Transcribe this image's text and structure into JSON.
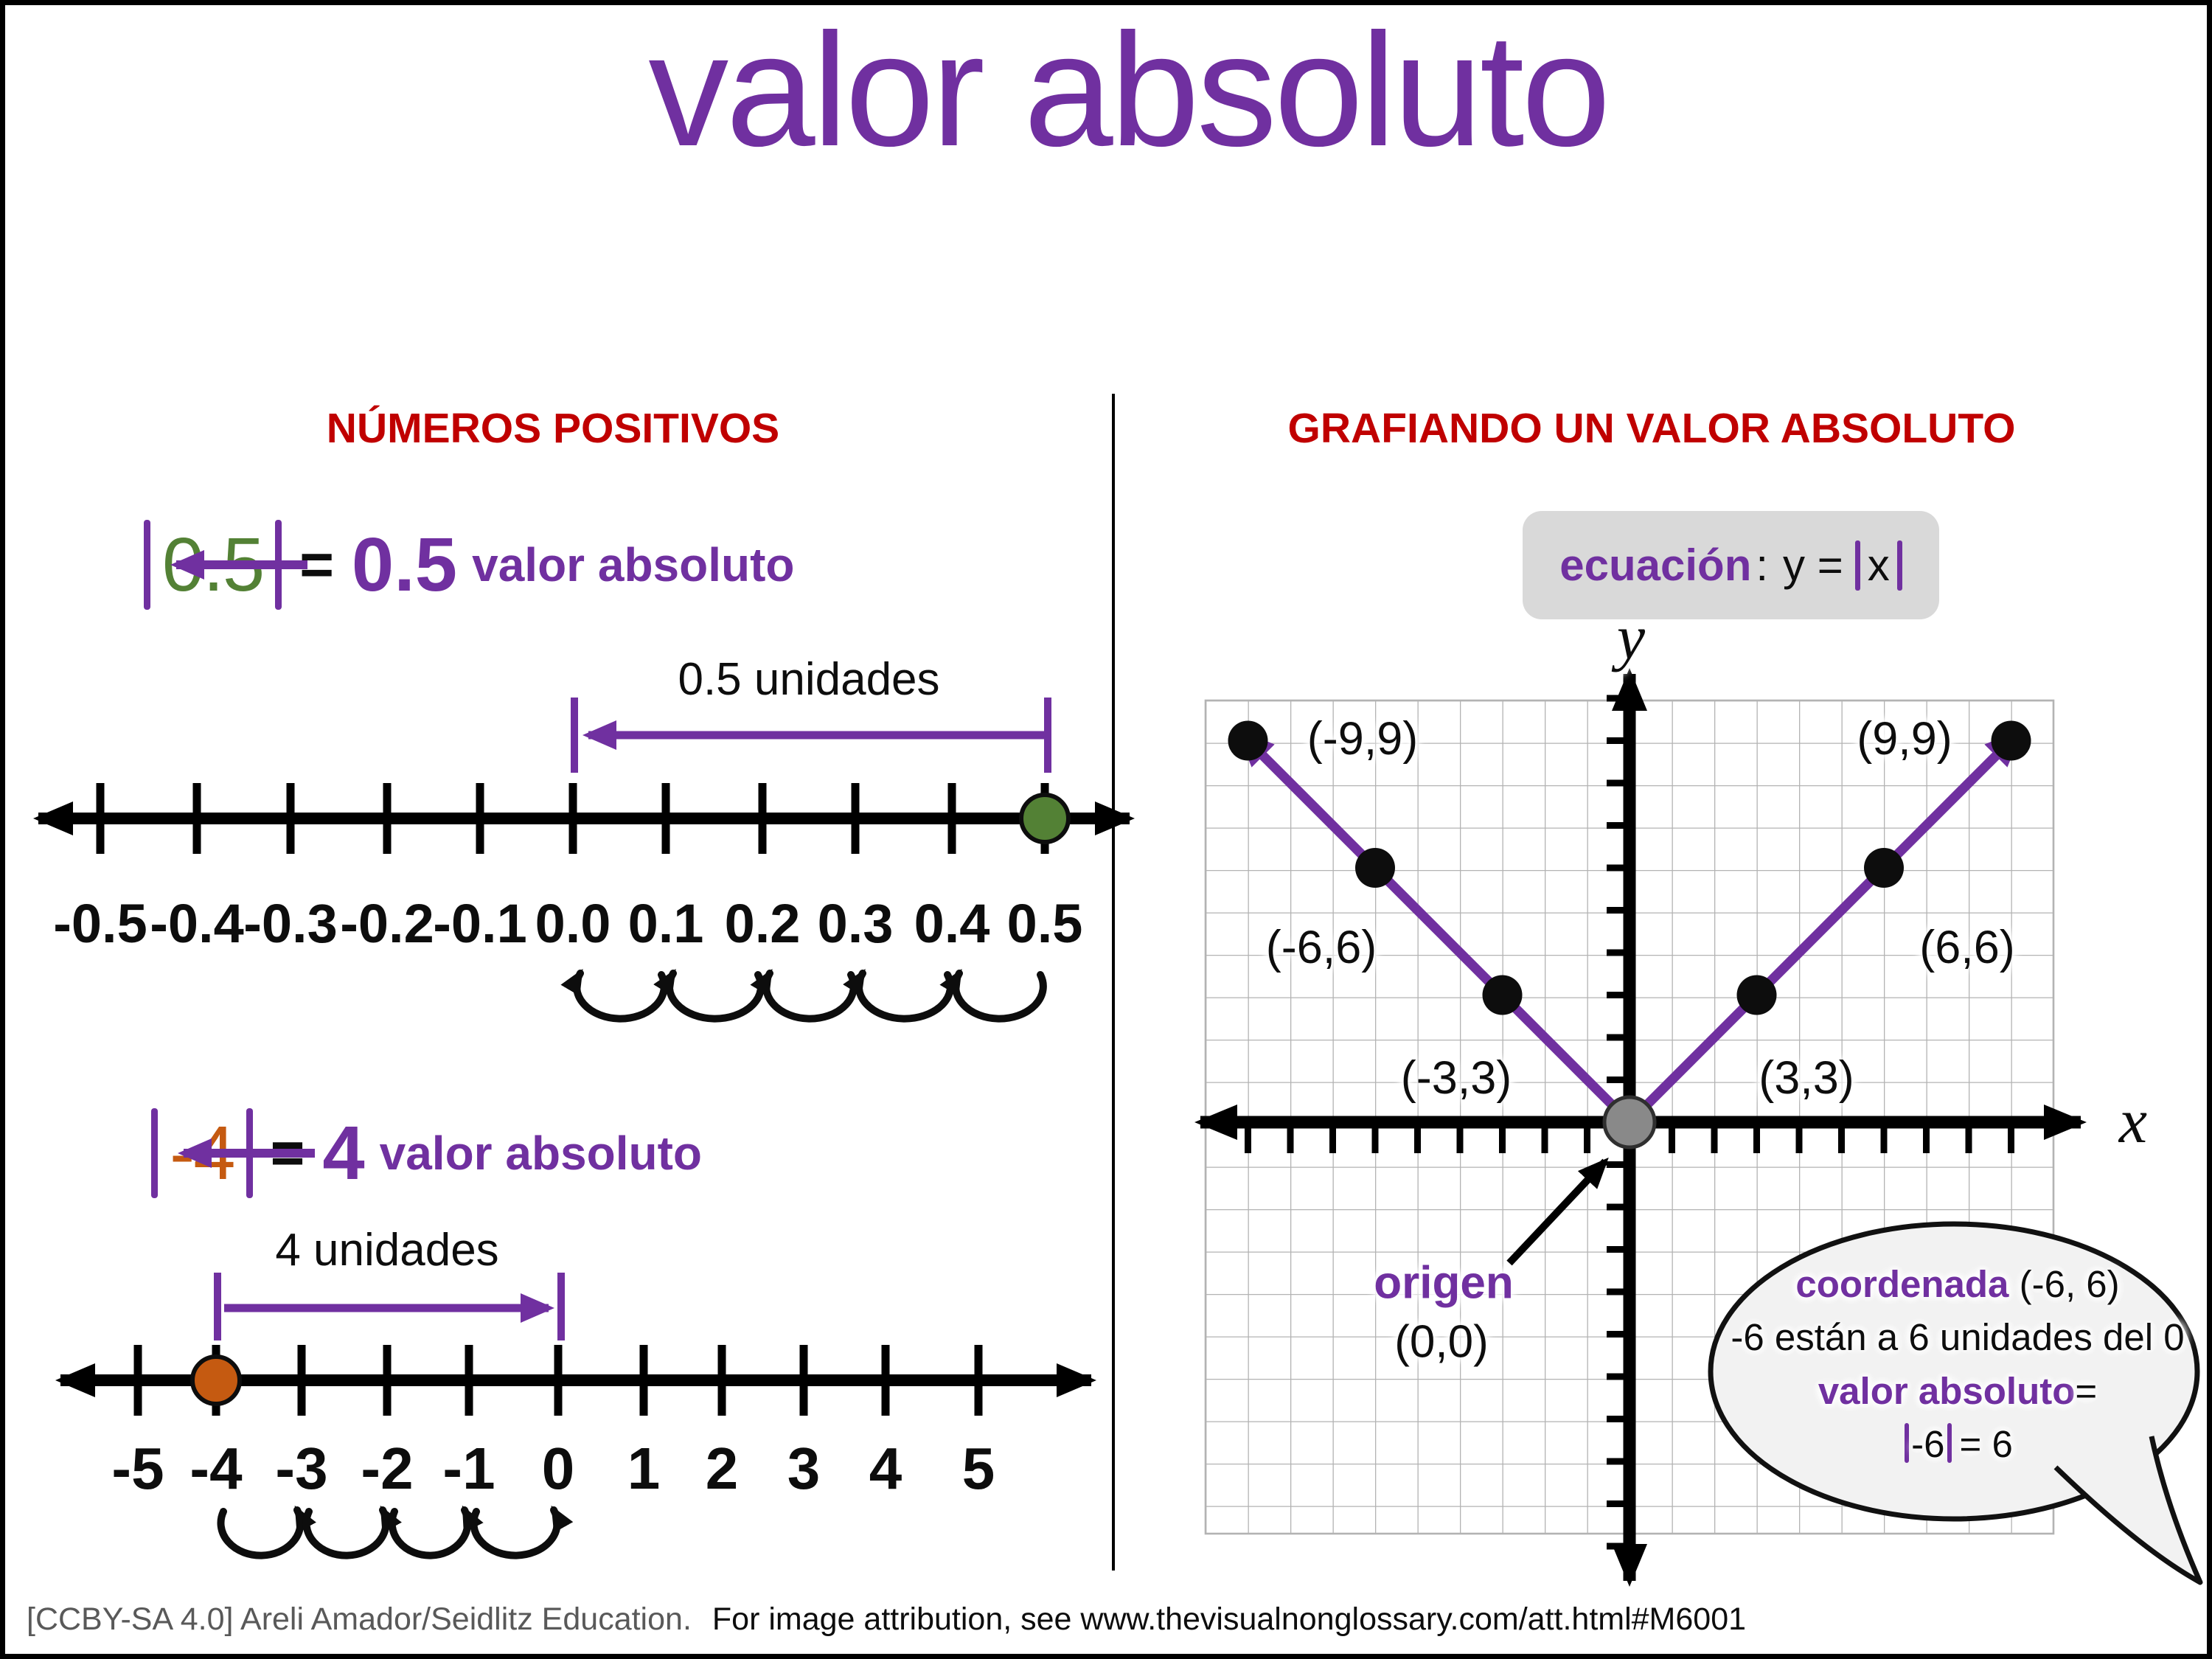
{
  "title": "valor absoluto",
  "palette": {
    "purple": "#7030A0",
    "red": "#C00000",
    "green": "#538135",
    "blue": "#2E75B6",
    "orange": "#C55A11",
    "gray_text": "#595959",
    "grid_line": "#b3b3b3",
    "bubble_fill": "#f2f2f2"
  },
  "left": {
    "heading": "NÚMEROS POSITIVOS",
    "example_decimal": {
      "inside_value": "0.5",
      "equals_sign": "=",
      "result_value": "0.5",
      "arrow_label": "valor absoluto",
      "distance_label": "0.5 unidades",
      "tick_labels": [
        "-0.5",
        "-0.4",
        "-0.3",
        "-0.2",
        "-0.1",
        "0.0",
        "0.1",
        "0.2",
        "0.3",
        "0.4",
        "0.5"
      ]
    },
    "example_negative": {
      "inside_value": "-4",
      "equals_sign": "=",
      "result_value": "4",
      "arrow_label": "valor absoluto",
      "distance_label": "4 unidades",
      "tick_labels": [
        "-5",
        "-4",
        "-3",
        "-2",
        "-1",
        "0",
        "1",
        "2",
        "3",
        "4",
        "5"
      ]
    }
  },
  "right": {
    "heading": "GRAFIANDO UN VALOR ABSOLUTO",
    "equation": {
      "keyword": "ecuación",
      "separator": ":",
      "expression_prefix": "y =",
      "variable": "x"
    },
    "graph": {
      "x_axis_label": "x",
      "y_axis_label": "y",
      "point_labels": {
        "p_neg9": "(-9,9)",
        "p_pos9": "(9,9)",
        "p_neg6": "(-6,6)",
        "p_pos6": "(6,6)",
        "p_neg3": "(-3,3)",
        "p_pos3": "(3,3)"
      },
      "origin": {
        "label": "origen",
        "coordinates": "(0,0)"
      }
    },
    "callout": {
      "line1_keyword": "coordenada",
      "line1_rest": " (-6, 6)",
      "line2": "-6 están a 6 unidades del 0",
      "line3_keyword": "valor absoluto",
      "line3_rest": "=",
      "line4_value": "-6",
      "line4_rest": "= 6"
    }
  },
  "footer": {
    "license": "[CCBY-SA 4.0] Areli Amador/Seidlitz Education.",
    "attribution": "For image attribution, see www.thevisualnonglossary.com/att.html#M6001"
  },
  "chart_data": {
    "type": "line",
    "title": "y = |x|",
    "x": [
      -9,
      -6,
      -3,
      0,
      3,
      6,
      9
    ],
    "series": [
      {
        "name": "y = |x|",
        "values": [
          9,
          6,
          3,
          0,
          3,
          6,
          9
        ]
      }
    ],
    "xlabel": "x",
    "ylabel": "y",
    "xlim": [
      -10,
      10
    ],
    "ylim": [
      -10,
      10
    ],
    "grid": true,
    "labeled_points": [
      [
        -9,
        9
      ],
      [
        -6,
        6
      ],
      [
        -3,
        3
      ],
      [
        3,
        3
      ],
      [
        6,
        6
      ],
      [
        9,
        9
      ]
    ],
    "vertex": [
      0,
      0
    ]
  }
}
